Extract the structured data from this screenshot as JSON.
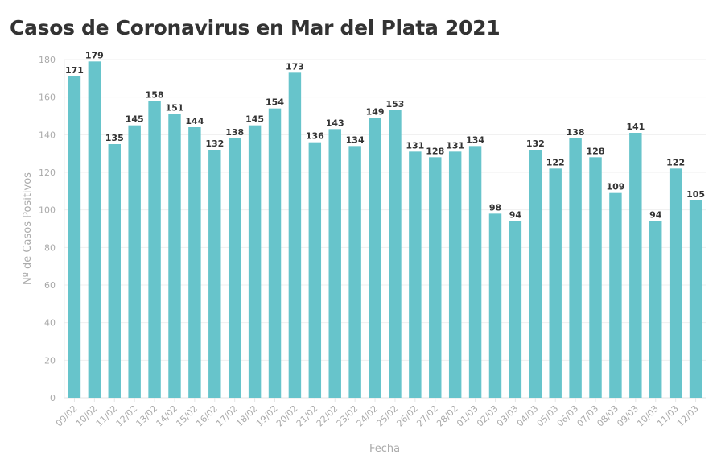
{
  "chart_data": {
    "type": "bar",
    "title": "Casos de Coronavirus en Mar del Plata 2021",
    "xlabel": "Fecha",
    "ylabel": "Nº de Casos Positivos",
    "ylim": [
      0,
      180
    ],
    "yticks": [
      0,
      20,
      40,
      60,
      80,
      100,
      120,
      140,
      160,
      180
    ],
    "grid": true,
    "bar_color": "#67c4cb",
    "categories": [
      "09/02",
      "10/02",
      "11/02",
      "12/02",
      "13/02",
      "14/02",
      "15/02",
      "16/02",
      "17/02",
      "18/02",
      "19/02",
      "20/02",
      "21/02",
      "22/02",
      "23/02",
      "24/02",
      "25/02",
      "26/02",
      "27/02",
      "28/02",
      "01/03",
      "02/03",
      "03/03",
      "04/03",
      "05/03",
      "06/03",
      "07/03",
      "08/03",
      "09/03",
      "10/03",
      "11/03",
      "12/03"
    ],
    "values": [
      171,
      179,
      135,
      145,
      158,
      151,
      144,
      132,
      138,
      145,
      154,
      173,
      136,
      143,
      134,
      149,
      153,
      131,
      128,
      131,
      134,
      98,
      94,
      132,
      122,
      138,
      128,
      109,
      141,
      94,
      122,
      105
    ]
  }
}
